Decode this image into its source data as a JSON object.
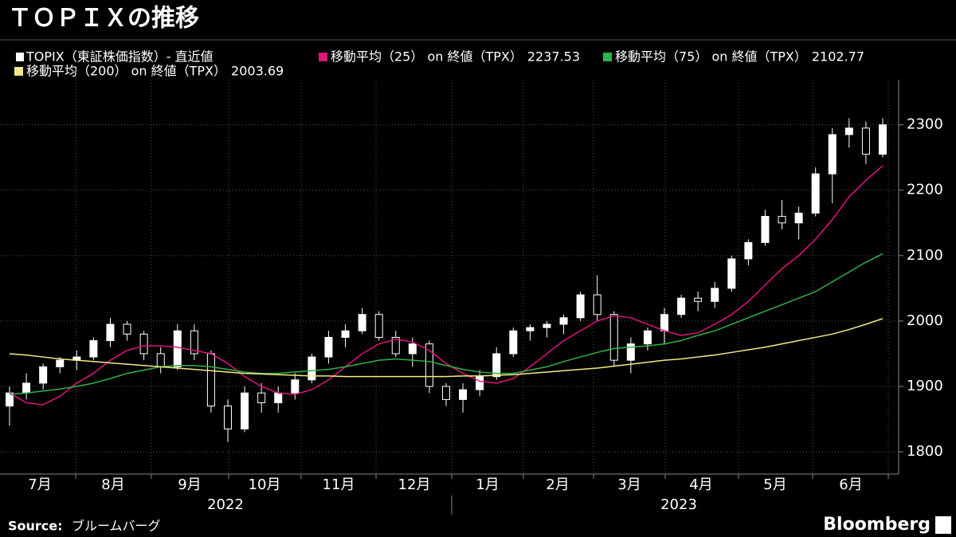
{
  "chart_data": {
    "type": "candlestick",
    "title": "ＴＯＰＩＸの推移",
    "candles": {
      "name": "TOPIX（東証株価指数）- 直近値",
      "color": "#ffffff",
      "open": [
        1870,
        1890,
        1905,
        1930,
        1940,
        1945,
        1970,
        1995,
        1980,
        1950,
        1930,
        1985,
        1950,
        1870,
        1835,
        1890,
        1875,
        1890,
        1910,
        1945,
        1975,
        1985,
        2010,
        1975,
        1950,
        1965,
        1900,
        1880,
        1895,
        1915,
        1950,
        1985,
        1990,
        1995,
        2005,
        2040,
        2010,
        1940,
        1965,
        1985,
        2010,
        2035,
        2030,
        2050,
        2095,
        2120,
        2160,
        2150,
        2165,
        2225,
        2285,
        2295,
        2255
      ],
      "high": [
        1900,
        1920,
        1935,
        1945,
        1955,
        1975,
        2005,
        2000,
        1985,
        1960,
        1995,
        1995,
        1955,
        1880,
        1900,
        1905,
        1900,
        1920,
        1950,
        1985,
        1995,
        2020,
        2015,
        1985,
        1975,
        1970,
        1905,
        1905,
        1925,
        1960,
        1990,
        1995,
        2000,
        2010,
        2045,
        2070,
        2015,
        1975,
        1990,
        2020,
        2040,
        2045,
        2060,
        2100,
        2125,
        2170,
        2185,
        2175,
        2235,
        2295,
        2310,
        2305,
        2310
      ],
      "low": [
        1840,
        1880,
        1895,
        1920,
        1925,
        1940,
        1960,
        1970,
        1940,
        1920,
        1925,
        1940,
        1860,
        1815,
        1830,
        1860,
        1860,
        1880,
        1905,
        1935,
        1960,
        1980,
        1970,
        1945,
        1930,
        1890,
        1870,
        1860,
        1885,
        1910,
        1945,
        1970,
        1975,
        1980,
        2000,
        2000,
        1930,
        1920,
        1955,
        1965,
        2005,
        2015,
        2020,
        2045,
        2085,
        2115,
        2140,
        2125,
        2160,
        2180,
        2265,
        2240,
        2250
      ],
      "close": [
        1890,
        1905,
        1930,
        1940,
        1945,
        1970,
        1995,
        1980,
        1950,
        1930,
        1985,
        1950,
        1870,
        1835,
        1890,
        1875,
        1890,
        1910,
        1945,
        1975,
        1985,
        2010,
        1975,
        1950,
        1965,
        1900,
        1880,
        1895,
        1915,
        1950,
        1985,
        1990,
        1995,
        2005,
        2040,
        2010,
        1940,
        1965,
        1985,
        2010,
        2035,
        2030,
        2050,
        2095,
        2120,
        2160,
        2150,
        2165,
        2225,
        2285,
        2295,
        2255,
        2300
      ]
    },
    "series": [
      {
        "name": "移動平均（25） on 終値（TPX）",
        "color": "#e0147f",
        "values": [
          1890,
          1875,
          1872,
          1885,
          1905,
          1920,
          1940,
          1955,
          1962,
          1962,
          1960,
          1955,
          1950,
          1935,
          1915,
          1900,
          1890,
          1888,
          1895,
          1910,
          1930,
          1950,
          1965,
          1972,
          1968,
          1955,
          1935,
          1920,
          1908,
          1905,
          1912,
          1930,
          1950,
          1970,
          1985,
          2000,
          2008,
          2005,
          1995,
          1985,
          1978,
          1982,
          1995,
          2010,
          2030,
          2055,
          2080,
          2100,
          2125,
          2155,
          2190,
          2215,
          2237.53
        ]
      },
      {
        "name": "移動平均（75） on 終値（TPX）",
        "color": "#2fb34a",
        "values": [
          1888,
          1890,
          1893,
          1896,
          1900,
          1905,
          1912,
          1920,
          1925,
          1930,
          1932,
          1932,
          1930,
          1926,
          1922,
          1920,
          1920,
          1922,
          1924,
          1926,
          1930,
          1935,
          1940,
          1942,
          1940,
          1938,
          1932,
          1926,
          1922,
          1920,
          1920,
          1925,
          1930,
          1938,
          1945,
          1952,
          1958,
          1960,
          1962,
          1965,
          1970,
          1978,
          1985,
          1995,
          2005,
          2015,
          2025,
          2035,
          2045,
          2060,
          2075,
          2090,
          2102.77
        ]
      },
      {
        "name": "移動平均（200） on 終値（TPX）",
        "color": "#f3e98a",
        "values": [
          1950,
          1948,
          1945,
          1942,
          1940,
          1938,
          1936,
          1934,
          1932,
          1930,
          1928,
          1926,
          1924,
          1922,
          1920,
          1919,
          1918,
          1917,
          1916,
          1916,
          1915,
          1915,
          1915,
          1915,
          1915,
          1915,
          1915,
          1916,
          1916,
          1917,
          1918,
          1920,
          1922,
          1924,
          1926,
          1928,
          1931,
          1934,
          1937,
          1940,
          1942,
          1945,
          1948,
          1952,
          1956,
          1960,
          1965,
          1970,
          1975,
          1980,
          1987,
          1995,
          2003.69
        ]
      }
    ],
    "months": [
      "7月",
      "8月",
      "9月",
      "10月",
      "11月",
      "12月",
      "1月",
      "2月",
      "3月",
      "4月",
      "5月",
      "6月"
    ],
    "years": [
      "2022",
      "2023"
    ],
    "ylim": [
      1766,
      2369
    ],
    "yticks": [
      1800,
      1900,
      2000,
      2100,
      2200,
      2300
    ],
    "grid": true,
    "source_label": "Source:",
    "source": "ブルームバーグ",
    "brand": "Bloomberg"
  }
}
